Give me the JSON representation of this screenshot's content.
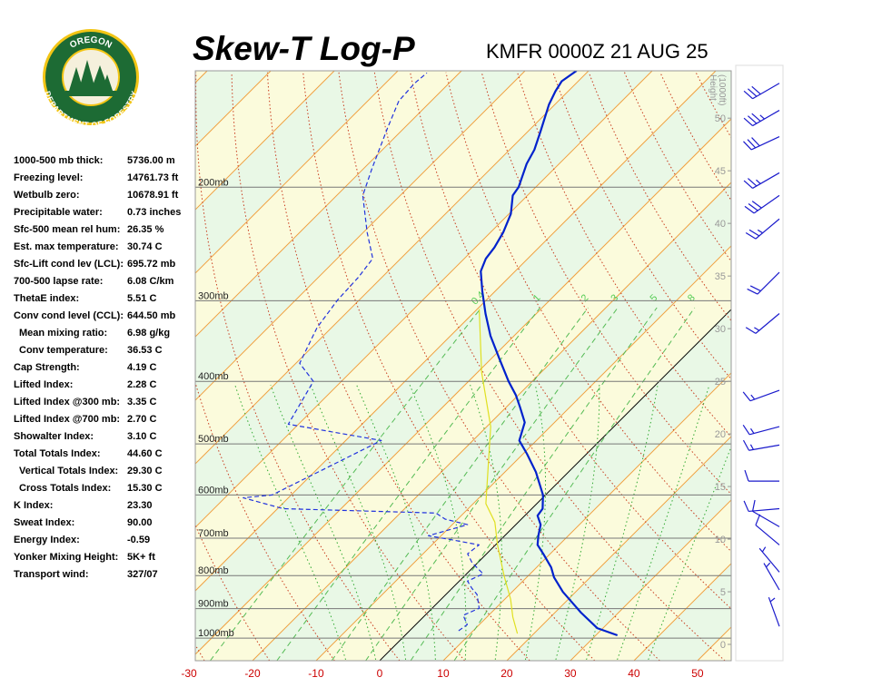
{
  "logo": {
    "top": "OREGON",
    "bottom": "DEPARTMENT OF FORESTRY"
  },
  "indices": [
    {
      "label": "1000-500 mb thick:",
      "value": "5736.00 m"
    },
    {
      "label": "Freezing level:",
      "value": "14761.73 ft"
    },
    {
      "label": "Wetbulb zero:",
      "value": "10678.91 ft"
    },
    {
      "label": "Precipitable water:",
      "value": "0.73 inches"
    },
    {
      "label": "Sfc-500 mean rel hum:",
      "value": "26.35 %"
    },
    {
      "label": "Est. max temperature:",
      "value": "30.74 C"
    },
    {
      "label": "Sfc-Lift cond lev (LCL):",
      "value": "695.72 mb"
    },
    {
      "label": "700-500 lapse rate:",
      "value": "6.08 C/km"
    },
    {
      "label": "ThetaE index:",
      "value": "5.51 C"
    },
    {
      "label": "Conv cond level (CCL):",
      "value": "644.50 mb"
    },
    {
      "label": "Mean mixing ratio:",
      "value": "6.98 g/kg"
    },
    {
      "label": "Conv temperature:",
      "value": "36.53 C"
    },
    {
      "label": "Cap Strength:",
      "value": "4.19 C"
    },
    {
      "label": "Lifted Index:",
      "value": "2.28 C"
    },
    {
      "label": "Lifted Index @300 mb:",
      "value": "3.35 C"
    },
    {
      "label": "Lifted Index @700 mb:",
      "value": "2.70 C"
    },
    {
      "label": "Showalter Index:",
      "value": "3.10 C"
    },
    {
      "label": "Total Totals Index:",
      "value": "44.60 C"
    },
    {
      "label": "Vertical Totals Index:",
      "value": "29.30 C"
    },
    {
      "label": "Cross Totals Index:",
      "value": "15.30 C"
    },
    {
      "label": "K Index:",
      "value": "23.30"
    },
    {
      "label": "Sweat Index:",
      "value": "90.00"
    },
    {
      "label": "Energy Index:",
      "value": "-0.59"
    },
    {
      "label": "Yonker Mixing Height:",
      "value": "5K+ ft"
    },
    {
      "label": "Transport wind:",
      "value": "327/07"
    }
  ],
  "chart_data": {
    "type": "skewt",
    "title": "Skew-T Log-P",
    "subtitle": "KMFR 0000Z 21 AUG 25",
    "xlim": [
      -29,
      55.3
    ],
    "xticks": [
      -30,
      -20,
      -10,
      0,
      10,
      20,
      30,
      40,
      50
    ],
    "ylim": [
      1084,
      132
    ],
    "log_y": true,
    "yticks": [
      {
        "value": 200,
        "label": "200mb"
      },
      {
        "value": 300,
        "label": "300mb"
      },
      {
        "value": 400,
        "label": "400mb"
      },
      {
        "value": 500,
        "label": "500mb"
      },
      {
        "value": 600,
        "label": "600mb"
      },
      {
        "value": 700,
        "label": "700mb"
      },
      {
        "value": 800,
        "label": "800mb"
      },
      {
        "value": 900,
        "label": "900mb"
      },
      {
        "value": 1000,
        "label": "1000mb"
      }
    ],
    "y2label": [
      "Height",
      "(1000ft)"
    ],
    "y2lim": [
      -1.55,
      54.5
    ],
    "y2ticks": [
      0,
      5,
      10,
      15,
      20,
      25,
      30,
      35,
      40,
      45,
      50
    ],
    "mixing_ratios": [
      0.4,
      1,
      2,
      3,
      5,
      8
    ],
    "series": [
      {
        "color": "#0022cc",
        "pressure": [
          990,
          965,
          913,
          848,
          805,
          777,
          740,
          717,
          694,
          667,
          646,
          630,
          600,
          553,
          518,
          494,
          463,
          438,
          420,
          400,
          369,
          340,
          314,
          290,
          270,
          258,
          248,
          235,
          220,
          206,
          200,
          184,
          175,
          164,
          149,
          142,
          137,
          132
        ],
        "values": [
          33.4,
          29.1,
          24.1,
          18.0,
          14.3,
          12.3,
          8.9,
          6.6,
          5.3,
          3.9,
          2.0,
          1.7,
          -0.4,
          -5.1,
          -9.4,
          -12.7,
          -14.7,
          -17.9,
          -20.4,
          -23.7,
          -28.7,
          -33.7,
          -38.0,
          -42.0,
          -45.4,
          -46.6,
          -47.0,
          -48.0,
          -49.7,
          -52.3,
          -52.7,
          -55.1,
          -56.1,
          -58.0,
          -60.9,
          -62.0,
          -62.6,
          -61.9
        ]
      },
      {
        "color": "#2233dd",
        "pressure": [
          974,
          953,
          922,
          899,
          856,
          837,
          816,
          795,
          764,
          740,
          717,
          705,
          694,
          667,
          654,
          640,
          630,
          606,
          600,
          494,
          466,
          400,
          375,
          330,
          299,
          276,
          258,
          235,
          206,
          187,
          162,
          147,
          138,
          133
        ],
        "values": [
          7.7,
          8.1,
          6.0,
          7.4,
          4.9,
          3.1,
          1.3,
          2.6,
          -0.9,
          -3.0,
          -2.6,
          -7.3,
          -12.0,
          -7.6,
          -12.0,
          -14.4,
          -39.1,
          -47.1,
          -43.0,
          -34.4,
          -51.6,
          -54.4,
          -59.4,
          -62.3,
          -63.4,
          -63.7,
          -64.4,
          -69.4,
          -75.9,
          -78.7,
          -82.6,
          -85.1,
          -85.4,
          -85.1
        ]
      },
      {
        "color": "#e0e020",
        "pressure": [
          984,
          928,
          870,
          802,
          717,
          661,
          619,
          470,
          387,
          309
        ],
        "values": [
          17.4,
          14.1,
          10.9,
          6.3,
          0.3,
          -3.7,
          -8.0,
          -19.4,
          -29.4,
          -39.7
        ]
      }
    ],
    "winds": {
      "pressure": [
        138,
        152,
        167,
        190,
        206,
        224,
        271,
        314,
        413,
        470,
        502,
        571,
        630,
        672,
        717,
        790,
        842,
        959
      ],
      "direction": [
        240,
        240,
        245,
        240,
        235,
        230,
        225,
        230,
        250,
        255,
        260,
        270,
        265,
        300,
        310,
        320,
        330,
        340
      ],
      "speed": [
        30,
        35,
        30,
        25,
        30,
        25,
        20,
        15,
        15,
        15,
        15,
        10,
        10,
        10,
        10,
        8,
        7,
        5
      ]
    }
  }
}
